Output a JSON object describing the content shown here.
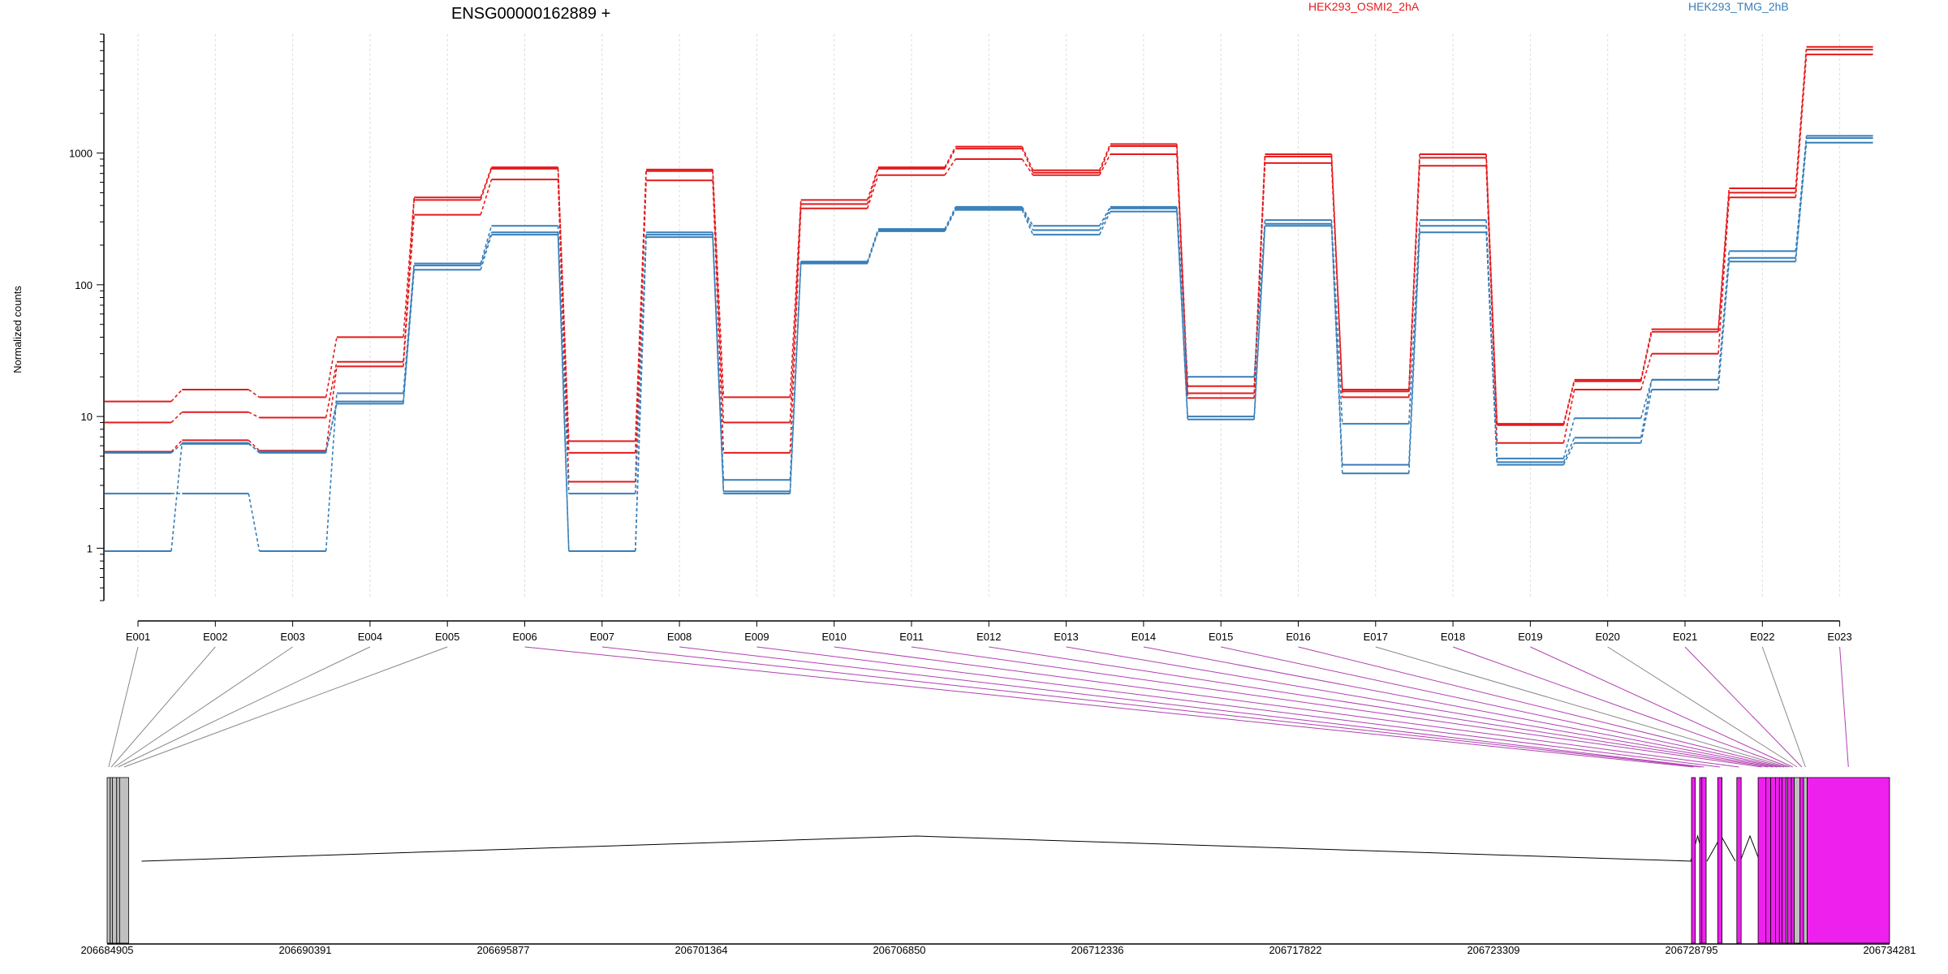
{
  "chart_data": {
    "type": "line",
    "title": "ENSG00000162889 +",
    "ylabel": "Normalized counts",
    "xlabel": "",
    "yscale": "log",
    "ylim": [
      0.4,
      8000
    ],
    "yticks": [
      1,
      10,
      100,
      1000
    ],
    "ytick_labels": [
      "1",
      "10",
      "100",
      "1000"
    ],
    "grid": "vertical dotted lines at each exon",
    "legend": "top",
    "categories": [
      "E001",
      "E002",
      "E003",
      "E004",
      "E005",
      "E006",
      "E007",
      "E008",
      "E009",
      "E010",
      "E011",
      "E012",
      "E013",
      "E014",
      "E015",
      "E016",
      "E017",
      "E018",
      "E019",
      "E020",
      "E021",
      "E022",
      "E023"
    ],
    "series": [
      {
        "name": "HEK293_OSMI2_2hA",
        "color": "#e41a1c",
        "values": [
          13,
          16,
          14,
          40,
          460,
          780,
          6.5,
          750,
          14,
          440,
          780,
          1120,
          740,
          1170,
          17,
          980,
          16,
          980,
          8.8,
          19,
          46,
          540,
          6400
        ]
      },
      {
        "color": "#e41a1c",
        "values": [
          9,
          10.8,
          9.8,
          26,
          440,
          760,
          5.3,
          730,
          9,
          410,
          760,
          1080,
          710,
          1130,
          15,
          940,
          15.5,
          920,
          8.6,
          18.5,
          44,
          500,
          6100
        ]
      },
      {
        "color": "#e41a1c",
        "values": [
          5.4,
          6.6,
          5.5,
          24,
          340,
          630,
          3.2,
          620,
          5.3,
          380,
          680,
          900,
          680,
          980,
          13.8,
          840,
          14,
          800,
          6.3,
          16,
          30,
          460,
          5600
        ]
      },
      {
        "color": "#377eb8",
        "values": [
          2.6,
          2.6,
          0.95,
          15,
          145,
          280,
          2.6,
          250,
          3.3,
          150,
          265,
          390,
          280,
          390,
          20,
          310,
          8.8,
          310,
          4.8,
          9.7,
          19,
          180,
          1350
        ]
      },
      {
        "color": "#377eb8",
        "values": [
          0.95,
          6.3,
          5.3,
          13,
          140,
          250,
          0.95,
          240,
          2.7,
          148,
          260,
          380,
          260,
          380,
          10,
          290,
          4.3,
          280,
          4.5,
          6.9,
          19,
          160,
          1300
        ]
      },
      {
        "name": "HEK293_TMG_2hB",
        "color": "#377eb8",
        "values": [
          5.3,
          6.2,
          5.4,
          12.5,
          130,
          240,
          0.95,
          230,
          2.6,
          145,
          255,
          370,
          240,
          360,
          9.5,
          280,
          3.7,
          250,
          4.3,
          6.3,
          16,
          150,
          1200
        ]
      }
    ],
    "legend_entries": [
      {
        "label": "HEK293_OSMI2_2hA",
        "color": "#e41a1c"
      },
      {
        "label": "HEK293_TMG_2hB",
        "color": "#377eb8"
      }
    ]
  },
  "gene_model": {
    "exon_color": "#ee20ee",
    "non_counted_exon_color": "#c0c0c0",
    "coordinate_range": [
      206684905,
      206734281
    ],
    "coordinate_ticks": [
      "206684905",
      "206690391",
      "206695877",
      "206701364",
      "206706850",
      "206712336",
      "206717822",
      "206723309",
      "206728795",
      "206734281"
    ],
    "exons": [
      {
        "id": "E001",
        "start": 206684905,
        "end": 206684990,
        "highlighted": false
      },
      {
        "id": "E002",
        "start": 206684990,
        "end": 206685050,
        "highlighted": false
      },
      {
        "id": "E003",
        "start": 206685050,
        "end": 206685170,
        "highlighted": false
      },
      {
        "id": "E004",
        "start": 206685170,
        "end": 206685250,
        "highlighted": false
      },
      {
        "id": "E005",
        "start": 206685250,
        "end": 206685500,
        "highlighted": false
      },
      {
        "id": "E006",
        "start": 206728795,
        "end": 206728900,
        "highlighted": true
      },
      {
        "id": "E007",
        "start": 206729020,
        "end": 206729080,
        "highlighted": true
      },
      {
        "id": "E008",
        "start": 206729080,
        "end": 206729200,
        "highlighted": true
      },
      {
        "id": "E009",
        "start": 206729520,
        "end": 206729640,
        "highlighted": true
      },
      {
        "id": "E010",
        "start": 206730050,
        "end": 206730170,
        "highlighted": true
      },
      {
        "id": "E011",
        "start": 206730640,
        "end": 206730850,
        "highlighted": true
      },
      {
        "id": "E012",
        "start": 206730850,
        "end": 206730990,
        "highlighted": true
      },
      {
        "id": "E013",
        "start": 206730990,
        "end": 206731120,
        "highlighted": true
      },
      {
        "id": "E014",
        "start": 206731120,
        "end": 206731230,
        "highlighted": true
      },
      {
        "id": "E015",
        "start": 206731230,
        "end": 206731300,
        "highlighted": true
      },
      {
        "id": "E016",
        "start": 206731300,
        "end": 206731420,
        "highlighted": true
      },
      {
        "id": "E017",
        "start": 206731420,
        "end": 206731460,
        "highlighted": false
      },
      {
        "id": "E018",
        "start": 206731460,
        "end": 206731560,
        "highlighted": true
      },
      {
        "id": "E019",
        "start": 206731560,
        "end": 206731640,
        "highlighted": true
      },
      {
        "id": "E020",
        "start": 206731640,
        "end": 206731800,
        "highlighted": false
      },
      {
        "id": "E021",
        "start": 206731800,
        "end": 206731900,
        "highlighted": true
      },
      {
        "id": "E022",
        "start": 206731900,
        "end": 206732000,
        "highlighted": false
      },
      {
        "id": "E023",
        "start": 206732000,
        "end": 206734281,
        "highlighted": true
      }
    ]
  }
}
